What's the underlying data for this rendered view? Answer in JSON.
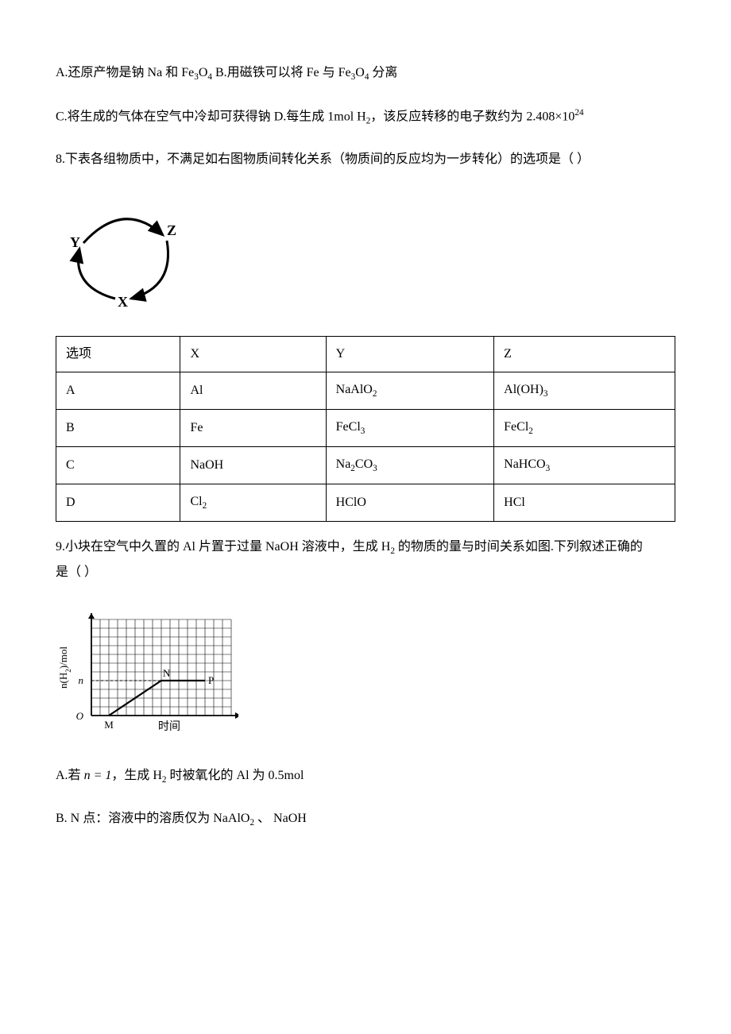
{
  "q7": {
    "optA_pre": "A.还原产物是钠 Na 和 ",
    "optA_f1": "Fe",
    "optA_f1s": "3",
    "optA_f2": "O",
    "optA_f2s": "4",
    "gapAB": "        ",
    "optB_pre": "B.用磁铁可以将 Fe 与 ",
    "optB_f1": "Fe",
    "optB_f1s": "3",
    "optB_f2": "O",
    "optB_f2s": "4",
    "optB_post": " 分离",
    "optC": "C.将生成的气体在空气中冷却可获得钠        ",
    "optD_pre": "D.每生成 1mol H",
    "optD_h2s": "2",
    "optD_mid": "，该反应转移的电子数约为 ",
    "optD_num": "2.408×10",
    "optD_exp": "24"
  },
  "q8": {
    "stem": "8.下表各组物质中，不满足如右图物质间转化关系（物质间的反应均为一步转化）的选项是（     ）",
    "diagram": {
      "labels": {
        "top_right": "Z",
        "left": "Y",
        "bottom": "X"
      },
      "stroke": "#000000",
      "bg": "#ffffff"
    },
    "table": {
      "header": [
        "选项",
        "X",
        "Y",
        "Z"
      ],
      "rows": [
        {
          "opt": "A",
          "x": {
            "t": "Al"
          },
          "y": {
            "t": "NaAlO",
            "sub": "2"
          },
          "z": {
            "t": "Al(OH)",
            "sub": "3"
          }
        },
        {
          "opt": "B",
          "x": {
            "t": "Fe"
          },
          "y": {
            "t": "FeCl",
            "sub": "3"
          },
          "z": {
            "t": "FeCl",
            "sub": "2"
          }
        },
        {
          "opt": "C",
          "x": {
            "t": "NaOH"
          },
          "y": {
            "t": "Na",
            "sub": "2",
            "t2": "CO",
            "sub2": "3"
          },
          "z": {
            "t": "NaHCO",
            "sub": "3"
          }
        },
        {
          "opt": "D",
          "x": {
            "t": "Cl",
            "sub": "2"
          },
          "y": {
            "t": "HClO"
          },
          "z": {
            "t": "HCl"
          }
        }
      ]
    }
  },
  "q9": {
    "stem_pre": "9.小块在空气中久置的 Al 片置于过量 NaOH 溶液中，生成 H",
    "stem_h2s": "2",
    "stem_post": " 的物质的量与时间关系如图.下列叙述正确的",
    "stem_line2": "是（     ）",
    "chart": {
      "ylabel_pre": "n(H",
      "ylabel_sub": "2",
      "ylabel_post": ")/mol",
      "xlabel": "时间",
      "tick_n": "n",
      "origin": "O",
      "pt_M": "M",
      "pt_N": "N",
      "pt_P": "P",
      "grid_color": "#000000",
      "bg": "#ffffff",
      "grid_cols": 16,
      "grid_rows": 11,
      "n_row": 4,
      "N_col": 8,
      "P_col": 13
    },
    "optA_pre": "A.若 ",
    "optA_eq": "n = 1",
    "optA_mid": "，生成 H",
    "optA_h2s": "2",
    "optA_post": " 时被氧化的 Al 为 0.5mol",
    "optB_pre": "B. N 点：溶液中的溶质仅为 NaAlO",
    "optB_sub": "2",
    "optB_post": " 、 NaOH"
  }
}
